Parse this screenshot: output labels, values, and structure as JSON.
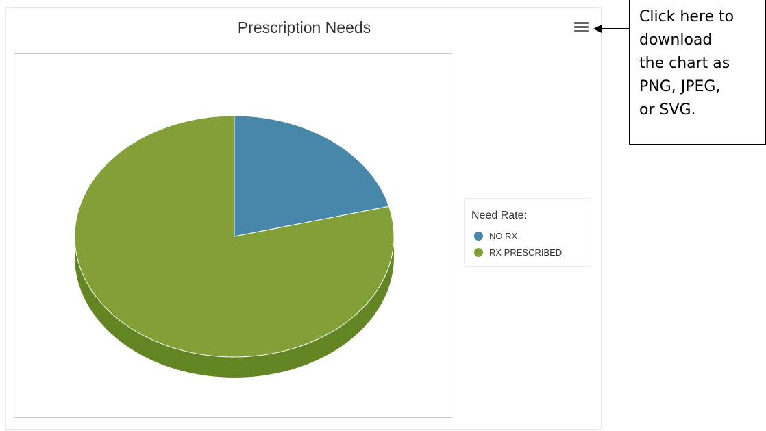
{
  "chart": {
    "title": "Prescription Needs",
    "menu_icon": "hamburger-menu-icon"
  },
  "legend": {
    "title": "Need Rate:",
    "placement": "right"
  },
  "callout": {
    "lines": [
      "Click here to",
      "download",
      "the chart as",
      "PNG, JPEG,",
      "or SVG."
    ]
  },
  "chart_data": {
    "type": "pie",
    "title": "Prescription Needs",
    "style": "3d",
    "categories": [
      "NO RX",
      "RX PRESCRIBED"
    ],
    "values": [
      21,
      79
    ],
    "colors": [
      "#4787aa",
      "#829f38"
    ],
    "side_colors": [
      "#336a88",
      "#648524"
    ],
    "legend_title": "Need Rate:",
    "legend_placement": "right"
  }
}
